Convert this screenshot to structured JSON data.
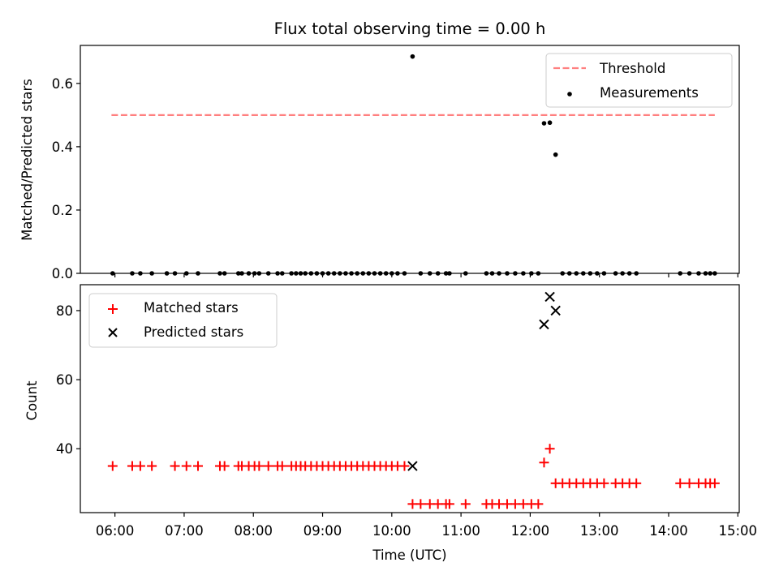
{
  "chart_data": [
    {
      "type": "scatter",
      "title": "Flux total observing time = 0.00 h",
      "ylabel": "Matched/Predicted stars",
      "xlabel": "",
      "ylim": [
        0,
        0.72
      ],
      "xlim_hours": [
        5.5,
        15.02
      ],
      "yticks": [
        0.0,
        0.2,
        0.4,
        0.6
      ],
      "ytick_labels": [
        "0.0",
        "0.2",
        "0.4",
        "0.6"
      ],
      "grid": false,
      "legend_position": "top-right",
      "threshold": {
        "name": "Threshold",
        "value": 0.5,
        "x_range": [
          "05:57",
          "14:40"
        ],
        "color": "#ff7f7f",
        "style": "dashed"
      },
      "series": [
        {
          "name": "Measurements",
          "color": "#000000",
          "marker": "dot",
          "points": [
            [
              "05:58",
              0
            ],
            [
              "06:15",
              0
            ],
            [
              "06:22",
              0
            ],
            [
              "06:32",
              0
            ],
            [
              "06:45",
              0
            ],
            [
              "06:52",
              0
            ],
            [
              "07:02",
              0
            ],
            [
              "07:12",
              0
            ],
            [
              "07:31",
              0
            ],
            [
              "07:35",
              0
            ],
            [
              "07:47",
              0
            ],
            [
              "07:50",
              0
            ],
            [
              "07:56",
              0
            ],
            [
              "08:01",
              0
            ],
            [
              "08:05",
              0
            ],
            [
              "08:13",
              0
            ],
            [
              "08:21",
              0
            ],
            [
              "08:25",
              0
            ],
            [
              "08:33",
              0
            ],
            [
              "08:37",
              0
            ],
            [
              "08:41",
              0
            ],
            [
              "08:45",
              0
            ],
            [
              "08:50",
              0
            ],
            [
              "08:55",
              0
            ],
            [
              "09:00",
              0
            ],
            [
              "09:05",
              0
            ],
            [
              "09:10",
              0
            ],
            [
              "09:15",
              0
            ],
            [
              "09:20",
              0
            ],
            [
              "09:25",
              0
            ],
            [
              "09:30",
              0
            ],
            [
              "09:35",
              0
            ],
            [
              "09:40",
              0
            ],
            [
              "09:45",
              0
            ],
            [
              "09:50",
              0
            ],
            [
              "09:55",
              0
            ],
            [
              "10:00",
              0
            ],
            [
              "10:05",
              0
            ],
            [
              "10:11",
              0
            ],
            [
              "10:18",
              0.685
            ],
            [
              "10:25",
              0
            ],
            [
              "10:33",
              0
            ],
            [
              "10:40",
              0
            ],
            [
              "10:47",
              0
            ],
            [
              "10:50",
              0
            ],
            [
              "11:04",
              0
            ],
            [
              "11:22",
              0
            ],
            [
              "11:27",
              0
            ],
            [
              "11:33",
              0
            ],
            [
              "11:40",
              0
            ],
            [
              "11:47",
              0
            ],
            [
              "11:54",
              0
            ],
            [
              "12:01",
              0
            ],
            [
              "12:07",
              0
            ],
            [
              "12:12",
              0.474
            ],
            [
              "12:17",
              0.476
            ],
            [
              "12:22",
              0.375
            ],
            [
              "12:28",
              0
            ],
            [
              "12:34",
              0
            ],
            [
              "12:40",
              0
            ],
            [
              "12:46",
              0
            ],
            [
              "12:52",
              0
            ],
            [
              "12:58",
              0
            ],
            [
              "13:04",
              0
            ],
            [
              "13:14",
              0
            ],
            [
              "13:20",
              0
            ],
            [
              "13:26",
              0
            ],
            [
              "13:32",
              0
            ],
            [
              "14:10",
              0
            ],
            [
              "14:18",
              0
            ],
            [
              "14:26",
              0
            ],
            [
              "14:32",
              0
            ],
            [
              "14:36",
              0
            ],
            [
              "14:40",
              0
            ]
          ]
        }
      ]
    },
    {
      "type": "scatter",
      "title": "",
      "xlabel": "Time (UTC)",
      "ylabel": "Count",
      "ylim": [
        21.5,
        87.5
      ],
      "xlim_hours": [
        5.5,
        15.02
      ],
      "yticks": [
        40,
        60,
        80
      ],
      "ytick_labels": [
        "40",
        "60",
        "80"
      ],
      "x_tick_labels": [
        "06:00",
        "07:00",
        "08:00",
        "09:00",
        "10:00",
        "11:00",
        "12:00",
        "13:00",
        "14:00",
        "15:00"
      ],
      "grid": false,
      "legend_position": "top-left",
      "series": [
        {
          "name": "Matched stars",
          "color": "#ff0000",
          "marker": "plus",
          "points": [
            [
              "05:58",
              35
            ],
            [
              "06:15",
              35
            ],
            [
              "06:22",
              35
            ],
            [
              "06:32",
              35
            ],
            [
              "06:52",
              35
            ],
            [
              "07:02",
              35
            ],
            [
              "07:12",
              35
            ],
            [
              "07:31",
              35
            ],
            [
              "07:35",
              35
            ],
            [
              "07:47",
              35
            ],
            [
              "07:50",
              35
            ],
            [
              "07:56",
              35
            ],
            [
              "08:01",
              35
            ],
            [
              "08:05",
              35
            ],
            [
              "08:13",
              35
            ],
            [
              "08:21",
              35
            ],
            [
              "08:25",
              35
            ],
            [
              "08:33",
              35
            ],
            [
              "08:37",
              35
            ],
            [
              "08:41",
              35
            ],
            [
              "08:45",
              35
            ],
            [
              "08:50",
              35
            ],
            [
              "08:55",
              35
            ],
            [
              "09:00",
              35
            ],
            [
              "09:05",
              35
            ],
            [
              "09:10",
              35
            ],
            [
              "09:15",
              35
            ],
            [
              "09:20",
              35
            ],
            [
              "09:25",
              35
            ],
            [
              "09:30",
              35
            ],
            [
              "09:35",
              35
            ],
            [
              "09:40",
              35
            ],
            [
              "09:45",
              35
            ],
            [
              "09:50",
              35
            ],
            [
              "09:55",
              35
            ],
            [
              "10:00",
              35
            ],
            [
              "10:05",
              35
            ],
            [
              "10:11",
              35
            ],
            [
              "10:18",
              24
            ],
            [
              "10:25",
              24
            ],
            [
              "10:33",
              24
            ],
            [
              "10:40",
              24
            ],
            [
              "10:47",
              24
            ],
            [
              "10:50",
              24
            ],
            [
              "11:04",
              24
            ],
            [
              "11:22",
              24
            ],
            [
              "11:27",
              24
            ],
            [
              "11:33",
              24
            ],
            [
              "11:40",
              24
            ],
            [
              "11:47",
              24
            ],
            [
              "11:54",
              24
            ],
            [
              "12:01",
              24
            ],
            [
              "12:07",
              24
            ],
            [
              "12:12",
              36
            ],
            [
              "12:17",
              40
            ],
            [
              "12:22",
              30
            ],
            [
              "12:28",
              30
            ],
            [
              "12:34",
              30
            ],
            [
              "12:40",
              30
            ],
            [
              "12:46",
              30
            ],
            [
              "12:52",
              30
            ],
            [
              "12:58",
              30
            ],
            [
              "13:04",
              30
            ],
            [
              "13:14",
              30
            ],
            [
              "13:20",
              30
            ],
            [
              "13:26",
              30
            ],
            [
              "13:32",
              30
            ],
            [
              "14:10",
              30
            ],
            [
              "14:18",
              30
            ],
            [
              "14:26",
              30
            ],
            [
              "14:32",
              30
            ],
            [
              "14:36",
              30
            ],
            [
              "14:40",
              30
            ]
          ]
        },
        {
          "name": "Predicted stars",
          "color": "#000000",
          "marker": "x",
          "points": [
            [
              "10:18",
              35
            ],
            [
              "12:12",
              76
            ],
            [
              "12:17",
              84
            ],
            [
              "12:22",
              80
            ]
          ]
        }
      ]
    }
  ]
}
